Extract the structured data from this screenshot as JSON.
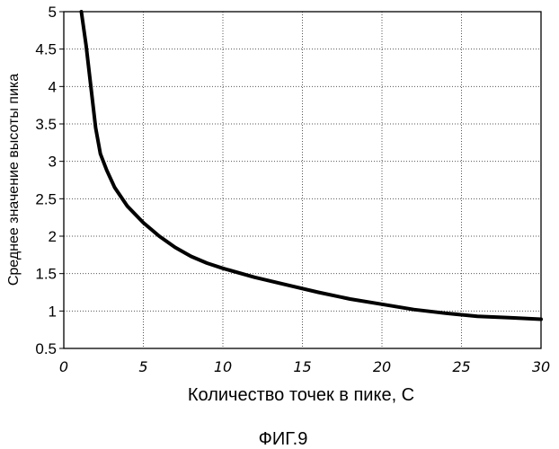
{
  "chart_data": {
    "type": "line",
    "title": "",
    "xlabel": "Количество точек в пике, С",
    "ylabel": "Среднее значение высоты пика",
    "xlim": [
      0,
      30
    ],
    "ylim": [
      0.5,
      5
    ],
    "xticks": [
      "0",
      "5",
      "10",
      "15",
      "20",
      "25",
      "30"
    ],
    "yticks": [
      "0.5",
      "1",
      "1.5",
      "2",
      "2.5",
      "3",
      "3.5",
      "4",
      "4.5",
      "5"
    ],
    "grid": true,
    "series": [
      {
        "x": [
          1.1,
          1.4,
          1.7,
          2.0,
          2.3,
          2.7,
          3.2,
          4.0,
          5.0,
          6.0,
          7.0,
          8.0,
          9.0,
          10.0,
          12.0,
          14.0,
          16.0,
          18.0,
          20.0,
          22.0,
          24.0,
          26.0,
          28.0,
          30.0
        ],
        "y": [
          5.0,
          4.55,
          4.0,
          3.45,
          3.1,
          2.88,
          2.65,
          2.4,
          2.18,
          2.0,
          1.85,
          1.73,
          1.64,
          1.57,
          1.45,
          1.35,
          1.25,
          1.16,
          1.09,
          1.02,
          0.97,
          0.93,
          0.91,
          0.89
        ]
      }
    ]
  },
  "caption": "ФИГ.9"
}
